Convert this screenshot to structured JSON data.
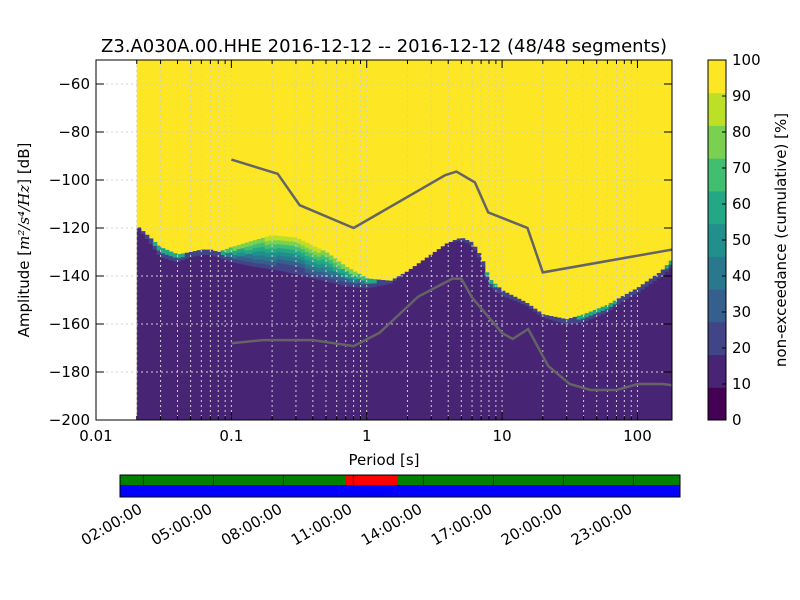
{
  "chart_data": {
    "type": "heatmap",
    "title": "Z3.A030A.00.HHE   2016-12-12 -- 2016-12-12  (48/48 segments)",
    "xlabel": "Period [s]",
    "ylabel_prefix": "Amplitude [",
    "ylabel_math": "m²/s⁴/Hz",
    "ylabel_suffix": "] [dB]",
    "x_scale": "log",
    "xlim": [
      0.01,
      180
    ],
    "ylim": [
      -200,
      -50
    ],
    "x_ticks": [
      {
        "value": 0.01,
        "label": "0.01"
      },
      {
        "value": 0.1,
        "label": "0.1"
      },
      {
        "value": 1,
        "label": "1"
      },
      {
        "value": 10,
        "label": "10"
      },
      {
        "value": 100,
        "label": "100"
      }
    ],
    "y_ticks": [
      {
        "value": -60,
        "label": "−60"
      },
      {
        "value": -80,
        "label": "−80"
      },
      {
        "value": -100,
        "label": "−100"
      },
      {
        "value": -120,
        "label": "−120"
      },
      {
        "value": -140,
        "label": "−140"
      },
      {
        "value": -160,
        "label": "−160"
      },
      {
        "value": -180,
        "label": "−180"
      },
      {
        "value": -200,
        "label": "−200"
      }
    ],
    "grid": true,
    "data_start_period": 0.02,
    "psd_boundary": {
      "periods": [
        0.02,
        0.025,
        0.03,
        0.04,
        0.05,
        0.06,
        0.07,
        0.08,
        0.1,
        0.15,
        0.2,
        0.3,
        0.5,
        0.7,
        1.0,
        1.5,
        2.0,
        3.0,
        4.0,
        5.0,
        6.0,
        7.0,
        8.0,
        10,
        15,
        20,
        30,
        40,
        60,
        80,
        100,
        150,
        180
      ],
      "p10_db": [
        -119,
        -126,
        -132,
        -134,
        -132,
        -131,
        -131,
        -132,
        -134,
        -136,
        -137,
        -139,
        -142,
        -144,
        -145,
        -143,
        -138,
        -131,
        -126,
        -125,
        -127,
        -134,
        -144,
        -148,
        -152,
        -157,
        -160,
        -159,
        -155,
        -150,
        -147,
        -140,
        -136
      ],
      "p90_db": [
        -119,
        -124,
        -128,
        -131,
        -130,
        -129,
        -129,
        -130,
        -128,
        -125,
        -123,
        -124,
        -130,
        -136,
        -141,
        -142,
        -138,
        -131,
        -126,
        -124,
        -126,
        -132,
        -141,
        -146,
        -151,
        -156,
        -158,
        -156,
        -152,
        -148,
        -145,
        -138,
        -133
      ]
    },
    "high_noise_model": {
      "periods": [
        0.1,
        0.22,
        0.32,
        0.8,
        3.8,
        4.6,
        6.3,
        7.9,
        15.4,
        20,
        180
      ],
      "db": [
        -91.5,
        -97.4,
        -110.5,
        -120,
        -98,
        -96.5,
        -101,
        -113.5,
        -120,
        -138.5,
        -129
      ]
    },
    "low_noise_model": {
      "periods": [
        0.1,
        0.17,
        0.4,
        0.8,
        1.24,
        2.4,
        4.3,
        5.0,
        6.0,
        10,
        12,
        15.6,
        21.9,
        31.6,
        45,
        70,
        101,
        154,
        180
      ],
      "db": [
        -168,
        -166.7,
        -166.7,
        -169.2,
        -163.7,
        -148.6,
        -141.1,
        -141.1,
        -149,
        -163.8,
        -166.2,
        -162.1,
        -177.5,
        -185,
        -187.5,
        -187.5,
        -185,
        -185,
        -185.5
      ]
    },
    "colorbar": {
      "label": "non-exceedance (cumulative) [%]",
      "range": [
        0,
        100
      ],
      "ticks": [
        "0",
        "10",
        "20",
        "30",
        "40",
        "50",
        "60",
        "70",
        "80",
        "90",
        "100"
      ],
      "colors": [
        "#440154",
        "#482475",
        "#414487",
        "#355f8d",
        "#2a788e",
        "#21908d",
        "#22a884",
        "#42be71",
        "#7ad151",
        "#bddf26",
        "#fde725"
      ]
    },
    "coverage": {
      "time_labels": [
        "02:00:00",
        "05:00:00",
        "08:00:00",
        "11:00:00",
        "14:00:00",
        "17:00:00",
        "20:00:00",
        "23:00:00"
      ],
      "top_color": "#008000",
      "gap_color": "#ff0000",
      "bottom_color": "#0000ff",
      "gap_start_frac": 0.402,
      "gap_end_frac": 0.495
    }
  }
}
